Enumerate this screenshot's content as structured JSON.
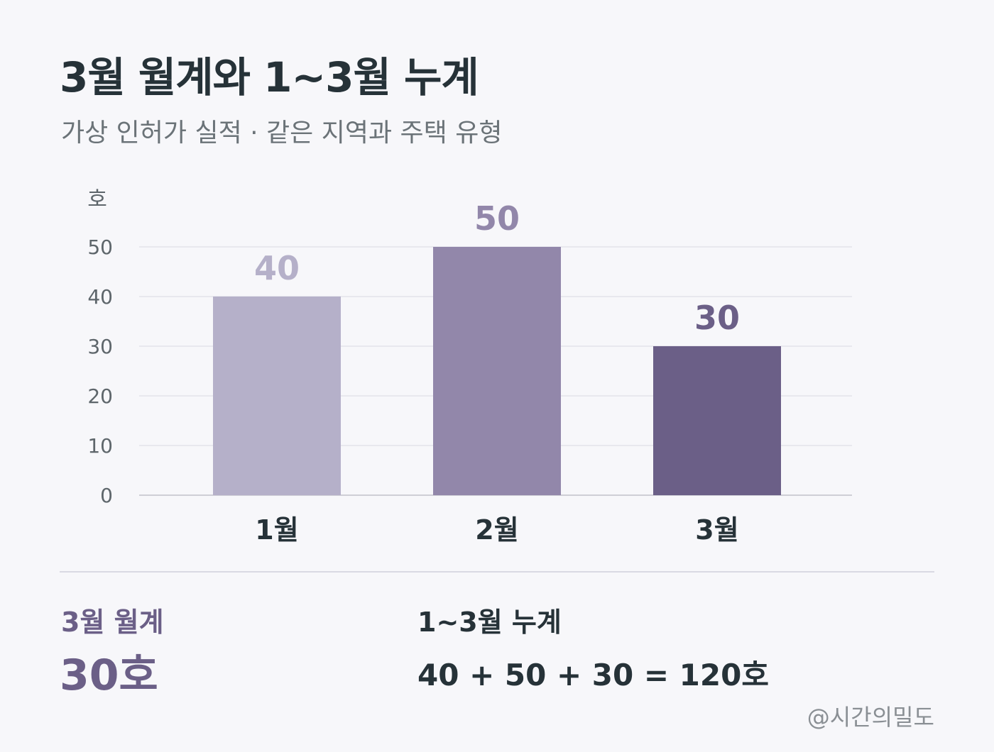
{
  "header": {
    "title": "3월 월계와 1~3월 누계",
    "subtitle": "가상 인허가 실적 · 같은 지역과 주택 유형"
  },
  "chart_data": {
    "type": "bar",
    "categories": [
      "1월",
      "2월",
      "3월"
    ],
    "values": [
      40,
      50,
      30
    ],
    "colors": [
      "#b5b0c9",
      "#9287aa",
      "#6b5f87"
    ],
    "ylabel": "호",
    "ylim": [
      0,
      50
    ],
    "yticks": [
      0,
      10,
      20,
      30,
      40,
      50
    ],
    "grid": true,
    "data_labels": true
  },
  "summary": {
    "monthly_label": "3월 월계",
    "monthly_value": "30호",
    "cumulative_label": "1~3월 누계",
    "cumulative_formula": "40 + 50 + 30 = 120호"
  },
  "credit": "@시간의밀도"
}
